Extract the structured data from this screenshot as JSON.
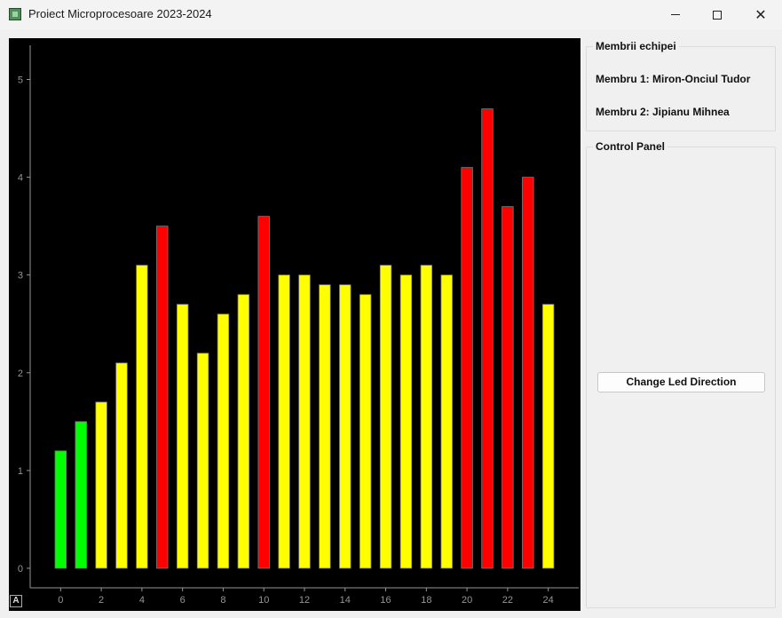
{
  "window": {
    "title": "Proiect Microprocesoare 2023-2024"
  },
  "members_group": {
    "title": "Membrii echipei",
    "member1": "Membru 1: Miron-Onciul Tudor",
    "member2": "Membru 2: Jipianu Mihnea"
  },
  "control_group": {
    "title": "Control Panel",
    "button_label": "Change Led Direction"
  },
  "plot": {
    "autoscale_label": "A"
  },
  "chart_data": {
    "type": "bar",
    "x": [
      0,
      1,
      2,
      3,
      4,
      5,
      6,
      7,
      8,
      9,
      10,
      11,
      12,
      13,
      14,
      15,
      16,
      17,
      18,
      19,
      20,
      21,
      22,
      23,
      24
    ],
    "values": [
      1.2,
      1.5,
      1.7,
      2.1,
      3.1,
      3.5,
      2.7,
      2.2,
      2.6,
      2.8,
      3.6,
      3.0,
      3.0,
      2.9,
      2.9,
      2.8,
      3.1,
      3.0,
      3.1,
      3.0,
      4.1,
      4.7,
      3.7,
      4.0,
      2.7
    ],
    "colors": [
      "#00ff00",
      "#00ff00",
      "#ffff00",
      "#ffff00",
      "#ffff00",
      "#ff0000",
      "#ffff00",
      "#ffff00",
      "#ffff00",
      "#ffff00",
      "#ff0000",
      "#ffff00",
      "#ffff00",
      "#ffff00",
      "#ffff00",
      "#ffff00",
      "#ffff00",
      "#ffff00",
      "#ffff00",
      "#ffff00",
      "#ff0000",
      "#ff0000",
      "#ff0000",
      "#ff0000",
      "#ffff00"
    ],
    "xticks": [
      0,
      2,
      4,
      6,
      8,
      10,
      12,
      14,
      16,
      18,
      20,
      22,
      24
    ],
    "yticks": [
      0,
      1,
      2,
      3,
      4,
      5
    ],
    "xlim": [
      -1.5,
      25.5
    ],
    "ylim": [
      -0.2,
      5.35
    ],
    "background": "#000000",
    "axis_color": "#969696",
    "grid": false
  }
}
